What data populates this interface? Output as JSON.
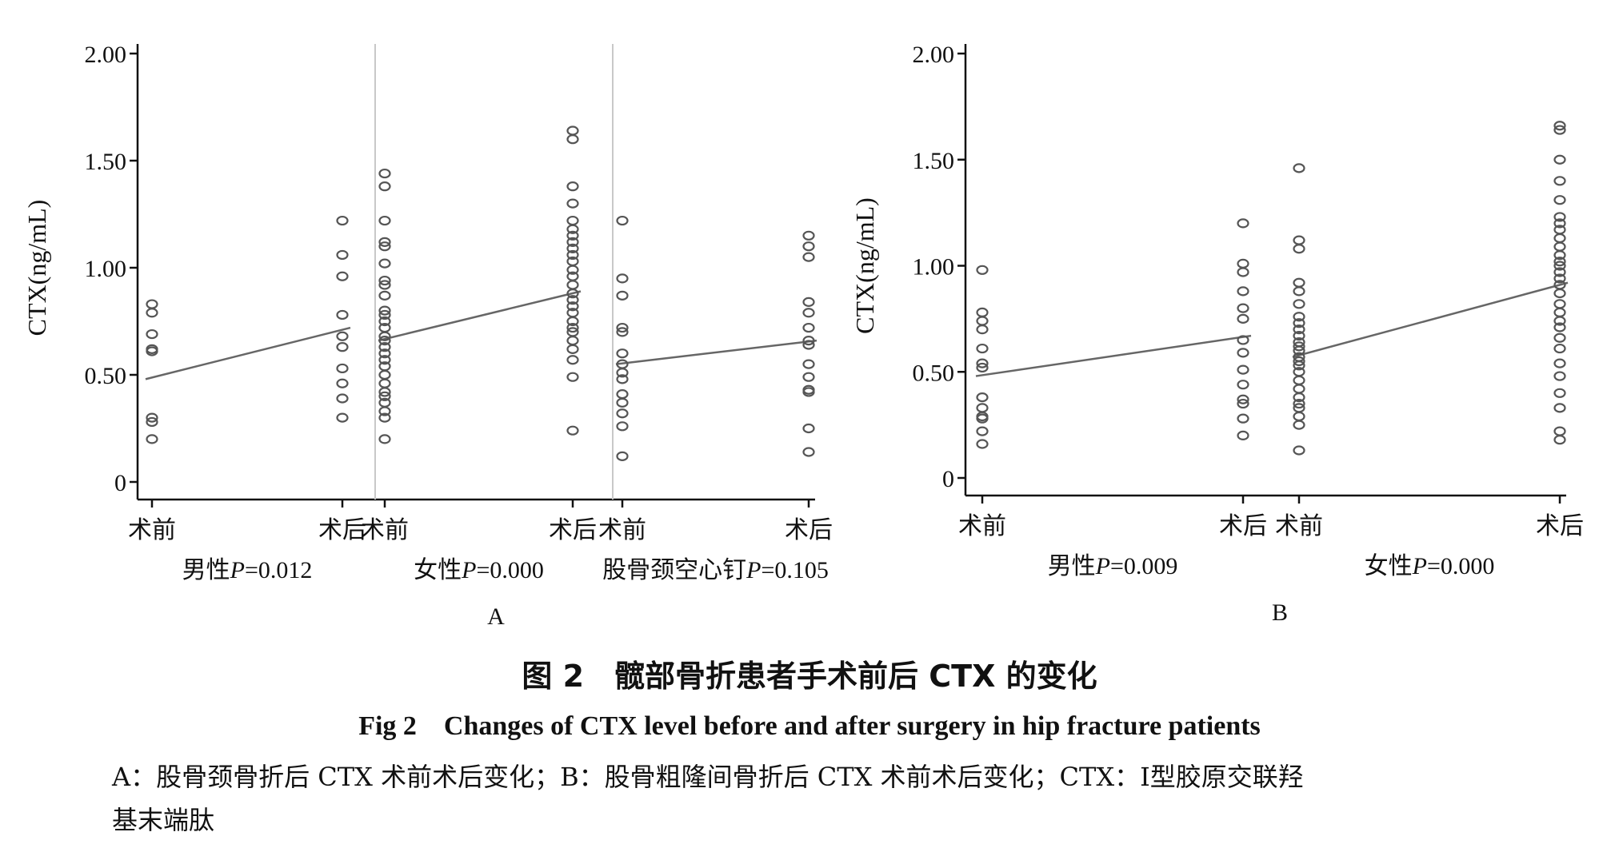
{
  "chart_data": [
    {
      "type": "scatter",
      "panel_label": "A",
      "ylabel": "CTX(ng/mL)",
      "ylim": [
        0,
        2.0
      ],
      "yticks": [
        "0",
        "0.50",
        "1.00",
        "1.50",
        "2.00"
      ],
      "categories": [
        "术前",
        "术后"
      ],
      "groups": [
        {
          "label": "男性",
          "p_value": "P=0.012",
          "pre": [
            0.83,
            0.79,
            0.69,
            0.62,
            0.61,
            0.3,
            0.28,
            0.2
          ],
          "post": [
            1.22,
            1.06,
            0.96,
            0.78,
            0.68,
            0.63,
            0.53,
            0.46,
            0.39,
            0.3
          ],
          "fit": [
            0.48,
            0.72
          ]
        },
        {
          "label": "女性",
          "p_value": "P=0.000",
          "pre": [
            1.44,
            1.38,
            1.22,
            1.12,
            1.1,
            1.02,
            0.94,
            0.92,
            0.87,
            0.8,
            0.78,
            0.75,
            0.72,
            0.68,
            0.66,
            0.63,
            0.6,
            0.57,
            0.54,
            0.5,
            0.46,
            0.42,
            0.4,
            0.37,
            0.33,
            0.3,
            0.2
          ],
          "post": [
            1.64,
            1.6,
            1.38,
            1.3,
            1.22,
            1.18,
            1.15,
            1.12,
            1.09,
            1.06,
            1.03,
            0.99,
            0.96,
            0.92,
            0.88,
            0.85,
            0.82,
            0.79,
            0.75,
            0.72,
            0.7,
            0.66,
            0.62,
            0.57,
            0.49,
            0.24
          ],
          "fit": [
            0.66,
            0.89
          ]
        },
        {
          "label": "股骨颈空心钉",
          "p_value": "P=0.105",
          "pre": [
            1.22,
            0.95,
            0.87,
            0.72,
            0.7,
            0.6,
            0.55,
            0.51,
            0.48,
            0.41,
            0.37,
            0.32,
            0.26,
            0.12
          ],
          "post": [
            1.15,
            1.1,
            1.05,
            0.84,
            0.79,
            0.72,
            0.66,
            0.64,
            0.55,
            0.49,
            0.43,
            0.42,
            0.25,
            0.14
          ],
          "fit": [
            0.55,
            0.66
          ]
        }
      ]
    },
    {
      "type": "scatter",
      "panel_label": "B",
      "ylabel": "CTX(ng/mL)",
      "ylim": [
        0,
        2.0
      ],
      "yticks": [
        "0",
        "0.50",
        "1.00",
        "1.50",
        "2.00"
      ],
      "categories": [
        "术前",
        "术后"
      ],
      "groups": [
        {
          "label": "男性",
          "p_value": "P=0.009",
          "pre": [
            0.98,
            0.78,
            0.74,
            0.7,
            0.61,
            0.54,
            0.52,
            0.38,
            0.33,
            0.29,
            0.28,
            0.22,
            0.16
          ],
          "post": [
            1.2,
            1.01,
            0.97,
            0.88,
            0.8,
            0.75,
            0.65,
            0.59,
            0.51,
            0.44,
            0.37,
            0.35,
            0.28,
            0.2
          ],
          "fit": [
            0.48,
            0.67
          ]
        },
        {
          "label": "女性",
          "p_value": "P=0.000",
          "pre": [
            1.46,
            1.12,
            1.08,
            0.92,
            0.88,
            0.82,
            0.76,
            0.73,
            0.7,
            0.67,
            0.64,
            0.62,
            0.6,
            0.57,
            0.55,
            0.53,
            0.5,
            0.46,
            0.42,
            0.38,
            0.35,
            0.33,
            0.29,
            0.25,
            0.13
          ],
          "post": [
            1.66,
            1.64,
            1.5,
            1.4,
            1.31,
            1.23,
            1.2,
            1.17,
            1.13,
            1.09,
            1.05,
            1.02,
            1.0,
            0.97,
            0.94,
            0.91,
            0.87,
            0.82,
            0.78,
            0.74,
            0.71,
            0.66,
            0.61,
            0.54,
            0.48,
            0.4,
            0.33,
            0.22,
            0.18
          ],
          "fit": [
            0.57,
            0.92
          ]
        }
      ]
    }
  ],
  "caption": {
    "chinese": "图 2　髋部骨折患者手术前后 CTX 的变化",
    "english": "Fig 2　Changes of CTX level before and after surgery in hip fracture patients"
  },
  "note": {
    "line1": "A：股骨颈骨折后 CTX 术前术后变化；B：股骨粗隆间骨折后 CTX 术前术后变化；CTX：Ⅰ型胶原交联羟",
    "line2": "基末端肽"
  },
  "colors": {
    "points": "#555555",
    "fit_line": "#666666",
    "axis": "#111111",
    "separator": "#c8c8c8"
  }
}
